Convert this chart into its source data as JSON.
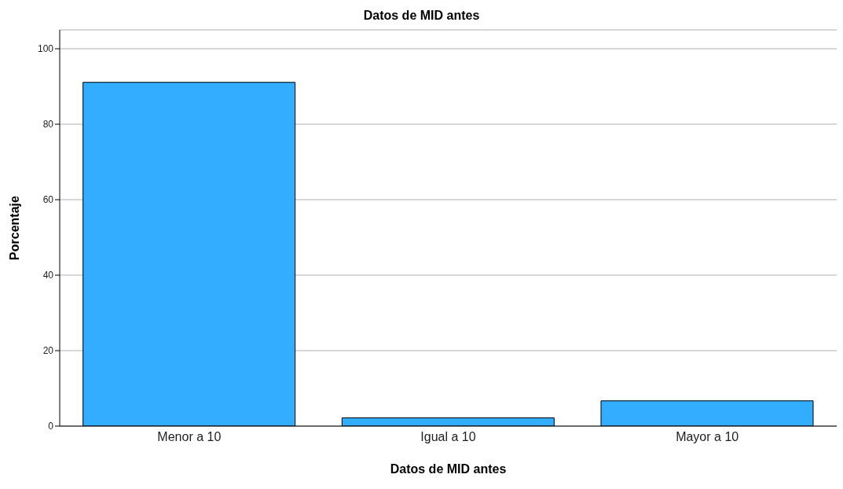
{
  "chart_data": {
    "type": "bar",
    "title": "Datos de MID antes",
    "xlabel": "Datos de MID antes",
    "ylabel": "Porcentaje",
    "categories": [
      "Menor a 10",
      "Igual a 10",
      "Mayor a 10"
    ],
    "values": [
      91.1,
      2.2,
      6.7
    ],
    "color": "#33adff",
    "ylim": [
      0,
      105
    ],
    "yticks": [
      0,
      20,
      40,
      60,
      80,
      100
    ],
    "grid": "y"
  }
}
